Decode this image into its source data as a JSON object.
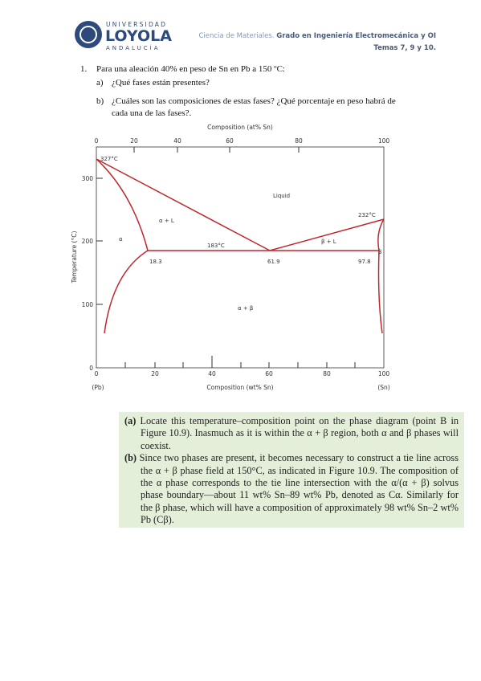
{
  "header": {
    "logo_top": "UNIVERSIDAD",
    "logo_main": "LOYOLA",
    "logo_bottom": "ANDALUCÍA",
    "course": "Ciencia de Materiales.",
    "degree": "Grado en Ingeniería Electromecánica y OI",
    "topics": "Temas 7, 9 y 10."
  },
  "question": {
    "number": "1.",
    "text": "Para una aleación 40% en peso de Sn en Pb a 150 ºC:",
    "items": [
      {
        "label": "a)",
        "text": "¿Qué fases están presentes?"
      },
      {
        "label": "b)",
        "text": "¿Cuáles son las composiciones de estas fases? ¿Qué porcentaje en peso habrá de",
        "text2": "cada una de las fases?."
      }
    ]
  },
  "diagram": {
    "top_axis_label": "Composition (at% Sn)",
    "top_ticks": [
      "0",
      "20",
      "40",
      "60",
      "80",
      "100"
    ],
    "bottom_axis_label": "Composition (wt% Sn)",
    "bottom_ticks": [
      "0",
      "20",
      "40",
      "60",
      "80",
      "100"
    ],
    "left_end": "(Pb)",
    "right_end": "(Sn)",
    "y_axis_label": "Temperature (°C)",
    "y_ticks": [
      "0",
      "100",
      "200",
      "300"
    ],
    "labels": {
      "pb_melt": "327°C",
      "liquid": "Liquid",
      "alpha_l": "α + L",
      "alpha": "α",
      "eutectic_temp": "183°C",
      "beta_l": "β + L",
      "sn_melt": "232°C",
      "beta": "β",
      "c_alpha": "18.3",
      "c_eutectic": "61.9",
      "c_beta": "97.8",
      "alpha_beta": "α + β"
    }
  },
  "solution": {
    "a_label": "(a)",
    "a_text": "Locate this temperature–composition point on the phase diagram (point B in Figure 10.9). Inasmuch as it is within the α + β region, both α and β phases will coexist.",
    "b_label": "(b)",
    "b_text": "Since two phases are present, it becomes necessary to construct a tie line across the α + β phase field at 150°C, as indicated in Figure 10.9. The composition of the α phase corresponds to the tie line intersection with the α/(α + β) solvus phase boundary—about 11 wt% Sn–89 wt% Pb, denoted as Cα. Similarly for the β phase, which will have a composition of approximately 98 wt% Sn–2 wt% Pb (Cβ)."
  }
}
